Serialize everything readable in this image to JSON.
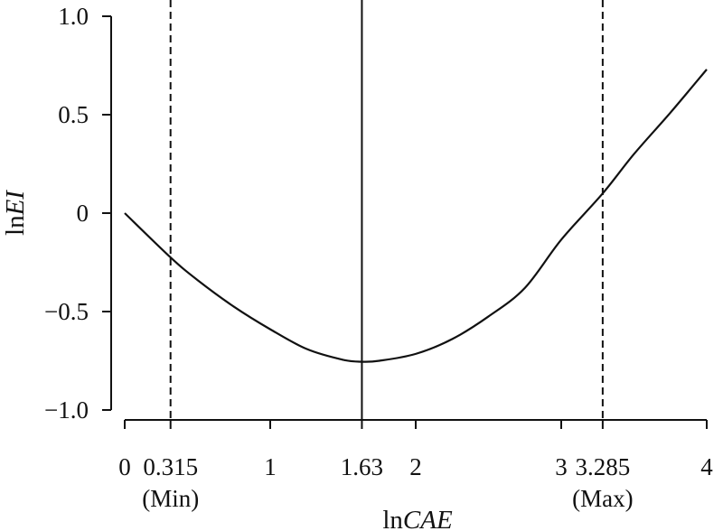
{
  "chart_data": {
    "type": "line",
    "xlabel_prefix": "ln",
    "xlabel_var": "CAE",
    "ylabel_prefix": "ln",
    "ylabel_var": "EI",
    "xlim": [
      0,
      4
    ],
    "ylim": [
      -1.0,
      1.0
    ],
    "x_ticks": [
      {
        "value": 0,
        "label": "0"
      },
      {
        "value": 1,
        "label": "1"
      },
      {
        "value": 2,
        "label": "2"
      },
      {
        "value": 3,
        "label": "3"
      },
      {
        "value": 4,
        "label": "4"
      }
    ],
    "y_ticks": [
      {
        "value": 1.0,
        "label": "1.0"
      },
      {
        "value": 0.5,
        "label": "0.5"
      },
      {
        "value": 0,
        "label": "0"
      },
      {
        "value": -0.5,
        "label": "−0.5"
      },
      {
        "value": -1.0,
        "label": "−1.0"
      }
    ],
    "reference_lines": [
      {
        "x": 0.315,
        "label": "0.315",
        "sublabel": "(Min)",
        "style": "dashed"
      },
      {
        "x": 1.63,
        "label": "1.63",
        "sublabel": "",
        "style": "solid"
      },
      {
        "x": 3.285,
        "label": "3.285",
        "sublabel": "(Max)",
        "style": "dashed"
      }
    ],
    "series": [
      {
        "points": [
          {
            "x": 0.0,
            "y": 0.0
          },
          {
            "x": 0.315,
            "y": -0.225
          },
          {
            "x": 0.5,
            "y": -0.34
          },
          {
            "x": 0.75,
            "y": -0.475
          },
          {
            "x": 1.0,
            "y": -0.59
          },
          {
            "x": 1.25,
            "y": -0.69
          },
          {
            "x": 1.5,
            "y": -0.745
          },
          {
            "x": 1.63,
            "y": -0.755
          },
          {
            "x": 1.75,
            "y": -0.75
          },
          {
            "x": 2.0,
            "y": -0.715
          },
          {
            "x": 2.25,
            "y": -0.64
          },
          {
            "x": 2.5,
            "y": -0.525
          },
          {
            "x": 2.75,
            "y": -0.38
          },
          {
            "x": 3.0,
            "y": -0.135
          },
          {
            "x": 3.285,
            "y": 0.1
          },
          {
            "x": 3.5,
            "y": 0.3
          },
          {
            "x": 3.75,
            "y": 0.51
          },
          {
            "x": 4.0,
            "y": 0.73
          }
        ]
      }
    ],
    "grid": false,
    "legend": "none"
  }
}
